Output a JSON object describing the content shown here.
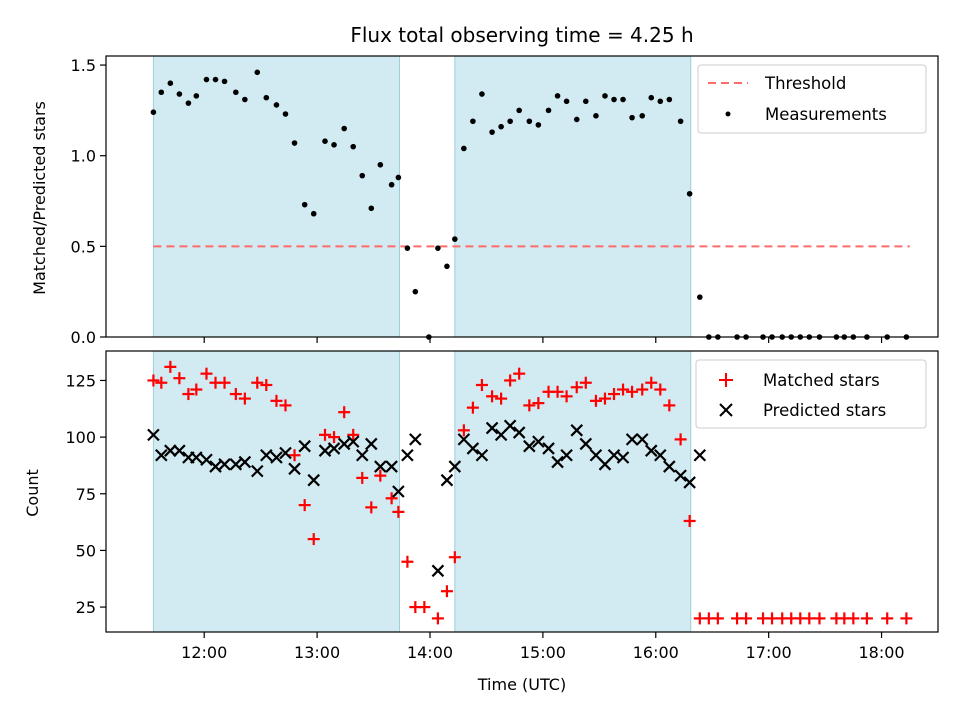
{
  "chart_data": {
    "type": "scatter",
    "title": "Flux total observing time = 4.25 h",
    "xlabel": "Time (UTC)",
    "x_ticks": [
      "12:00",
      "13:00",
      "14:00",
      "15:00",
      "16:00",
      "17:00",
      "18:00"
    ],
    "x_tick_hours": [
      12,
      13,
      14,
      15,
      16,
      17,
      18
    ],
    "xlim_hours": [
      11.13,
      18.5
    ],
    "shaded_intervals_hours": [
      [
        11.55,
        13.73
      ],
      [
        14.22,
        16.31
      ]
    ],
    "shade_color": "#add8e6",
    "panels": [
      {
        "ylabel": "Matched/Predicted stars",
        "ylim": [
          0,
          1.55
        ],
        "y_ticks": [
          "0.0",
          "0.5",
          "1.0",
          "1.5"
        ],
        "y_tick_values": [
          0,
          0.5,
          1.0,
          1.5
        ],
        "threshold": 0.5,
        "threshold_color": "#ff6b6b",
        "legend": [
          "Threshold",
          "Measurements"
        ],
        "legend_position": "upper right",
        "measurements": [
          [
            11.55,
            1.24
          ],
          [
            11.62,
            1.35
          ],
          [
            11.7,
            1.4
          ],
          [
            11.78,
            1.34
          ],
          [
            11.86,
            1.29
          ],
          [
            11.93,
            1.33
          ],
          [
            12.02,
            1.42
          ],
          [
            12.1,
            1.42
          ],
          [
            12.18,
            1.41
          ],
          [
            12.28,
            1.35
          ],
          [
            12.36,
            1.31
          ],
          [
            12.47,
            1.46
          ],
          [
            12.55,
            1.32
          ],
          [
            12.64,
            1.28
          ],
          [
            12.72,
            1.23
          ],
          [
            12.8,
            1.07
          ],
          [
            12.89,
            0.73
          ],
          [
            12.97,
            0.68
          ],
          [
            13.07,
            1.08
          ],
          [
            13.15,
            1.06
          ],
          [
            13.24,
            1.15
          ],
          [
            13.32,
            1.05
          ],
          [
            13.4,
            0.89
          ],
          [
            13.48,
            0.71
          ],
          [
            13.56,
            0.95
          ],
          [
            13.66,
            0.84
          ],
          [
            13.72,
            0.88
          ],
          [
            13.8,
            0.49
          ],
          [
            13.87,
            0.25
          ],
          [
            13.99,
            0.0
          ],
          [
            14.07,
            0.49
          ],
          [
            14.15,
            0.39
          ],
          [
            14.22,
            0.54
          ],
          [
            14.3,
            1.04
          ],
          [
            14.38,
            1.19
          ],
          [
            14.46,
            1.34
          ],
          [
            14.55,
            1.13
          ],
          [
            14.63,
            1.16
          ],
          [
            14.71,
            1.19
          ],
          [
            14.79,
            1.25
          ],
          [
            14.88,
            1.19
          ],
          [
            14.96,
            1.17
          ],
          [
            15.05,
            1.25
          ],
          [
            15.13,
            1.33
          ],
          [
            15.21,
            1.3
          ],
          [
            15.3,
            1.2
          ],
          [
            15.38,
            1.3
          ],
          [
            15.47,
            1.22
          ],
          [
            15.55,
            1.33
          ],
          [
            15.63,
            1.31
          ],
          [
            15.71,
            1.31
          ],
          [
            15.79,
            1.21
          ],
          [
            15.88,
            1.22
          ],
          [
            15.96,
            1.32
          ],
          [
            16.04,
            1.3
          ],
          [
            16.12,
            1.31
          ],
          [
            16.22,
            1.19
          ],
          [
            16.3,
            0.79
          ],
          [
            16.39,
            0.22
          ],
          [
            16.47,
            0.0
          ],
          [
            16.55,
            0.0
          ],
          [
            16.72,
            0.0
          ],
          [
            16.8,
            0.0
          ],
          [
            16.95,
            0.0
          ],
          [
            17.03,
            0.0
          ],
          [
            17.12,
            0.0
          ],
          [
            17.2,
            0.0
          ],
          [
            17.28,
            0.0
          ],
          [
            17.36,
            0.0
          ],
          [
            17.45,
            0.0
          ],
          [
            17.6,
            0.0
          ],
          [
            17.67,
            0.0
          ],
          [
            17.75,
            0.0
          ],
          [
            17.87,
            0.0
          ],
          [
            18.05,
            0.0
          ],
          [
            18.22,
            0.0
          ]
        ]
      },
      {
        "ylabel": "Count",
        "ylim": [
          14,
          138
        ],
        "y_ticks": [
          "25",
          "50",
          "75",
          "100",
          "125"
        ],
        "y_tick_values": [
          25,
          50,
          75,
          100,
          125
        ],
        "legend": [
          "Matched stars",
          "Predicted stars"
        ],
        "legend_position": "upper right",
        "series": [
          {
            "name": "Matched stars",
            "marker": "+",
            "color": "#ff0000",
            "points": [
              [
                11.55,
                125
              ],
              [
                11.62,
                124
              ],
              [
                11.7,
                131
              ],
              [
                11.78,
                126
              ],
              [
                11.86,
                119
              ],
              [
                11.93,
                121
              ],
              [
                12.02,
                128
              ],
              [
                12.1,
                124
              ],
              [
                12.18,
                124
              ],
              [
                12.28,
                119
              ],
              [
                12.36,
                117
              ],
              [
                12.47,
                124
              ],
              [
                12.55,
                123
              ],
              [
                12.64,
                116
              ],
              [
                12.72,
                114
              ],
              [
                12.8,
                92
              ],
              [
                12.89,
                70
              ],
              [
                12.97,
                55
              ],
              [
                13.07,
                101
              ],
              [
                13.15,
                100
              ],
              [
                13.24,
                111
              ],
              [
                13.32,
                101
              ],
              [
                13.4,
                82
              ],
              [
                13.48,
                69
              ],
              [
                13.56,
                83
              ],
              [
                13.66,
                73
              ],
              [
                13.72,
                67
              ],
              [
                13.8,
                45
              ],
              [
                13.87,
                25
              ],
              [
                13.95,
                25
              ],
              [
                14.07,
                20
              ],
              [
                14.15,
                32
              ],
              [
                14.22,
                47
              ],
              [
                14.3,
                103
              ],
              [
                14.38,
                113
              ],
              [
                14.46,
                123
              ],
              [
                14.55,
                118
              ],
              [
                14.63,
                117
              ],
              [
                14.71,
                125
              ],
              [
                14.79,
                128
              ],
              [
                14.88,
                114
              ],
              [
                14.96,
                115
              ],
              [
                15.05,
                120
              ],
              [
                15.13,
                120
              ],
              [
                15.21,
                118
              ],
              [
                15.3,
                122
              ],
              [
                15.38,
                124
              ],
              [
                15.47,
                116
              ],
              [
                15.55,
                117
              ],
              [
                15.63,
                119
              ],
              [
                15.71,
                121
              ],
              [
                15.79,
                120
              ],
              [
                15.88,
                121
              ],
              [
                15.96,
                124
              ],
              [
                16.04,
                121
              ],
              [
                16.12,
                114
              ],
              [
                16.22,
                99
              ],
              [
                16.3,
                63
              ],
              [
                16.39,
                20
              ],
              [
                16.47,
                20
              ],
              [
                16.55,
                20
              ],
              [
                16.72,
                20
              ],
              [
                16.8,
                20
              ],
              [
                16.95,
                20
              ],
              [
                17.03,
                20
              ],
              [
                17.12,
                20
              ],
              [
                17.2,
                20
              ],
              [
                17.28,
                20
              ],
              [
                17.36,
                20
              ],
              [
                17.45,
                20
              ],
              [
                17.6,
                20
              ],
              [
                17.67,
                20
              ],
              [
                17.75,
                20
              ],
              [
                17.87,
                20
              ],
              [
                18.05,
                20
              ],
              [
                18.22,
                20
              ]
            ]
          },
          {
            "name": "Predicted stars",
            "marker": "x",
            "color": "#000000",
            "points": [
              [
                11.55,
                101
              ],
              [
                11.62,
                92
              ],
              [
                11.7,
                94
              ],
              [
                11.78,
                94
              ],
              [
                11.86,
                91
              ],
              [
                11.93,
                91
              ],
              [
                12.02,
                90
              ],
              [
                12.1,
                87
              ],
              [
                12.18,
                88
              ],
              [
                12.28,
                88
              ],
              [
                12.36,
                89
              ],
              [
                12.47,
                85
              ],
              [
                12.55,
                92
              ],
              [
                12.64,
                91
              ],
              [
                12.72,
                93
              ],
              [
                12.8,
                86
              ],
              [
                12.89,
                96
              ],
              [
                12.97,
                81
              ],
              [
                13.07,
                94
              ],
              [
                13.15,
                95
              ],
              [
                13.24,
                97
              ],
              [
                13.32,
                98
              ],
              [
                13.4,
                92
              ],
              [
                13.48,
                97
              ],
              [
                13.56,
                87
              ],
              [
                13.66,
                87
              ],
              [
                13.72,
                76
              ],
              [
                13.8,
                92
              ],
              [
                13.87,
                99
              ],
              [
                14.07,
                41
              ],
              [
                14.15,
                81
              ],
              [
                14.22,
                87
              ],
              [
                14.3,
                99
              ],
              [
                14.38,
                95
              ],
              [
                14.46,
                92
              ],
              [
                14.55,
                104
              ],
              [
                14.63,
                101
              ],
              [
                14.71,
                105
              ],
              [
                14.79,
                102
              ],
              [
                14.88,
                96
              ],
              [
                14.96,
                98
              ],
              [
                15.05,
                95
              ],
              [
                15.13,
                89
              ],
              [
                15.21,
                92
              ],
              [
                15.3,
                103
              ],
              [
                15.38,
                97
              ],
              [
                15.47,
                92
              ],
              [
                15.55,
                88
              ],
              [
                15.63,
                92
              ],
              [
                15.71,
                91
              ],
              [
                15.79,
                99
              ],
              [
                15.88,
                99
              ],
              [
                15.96,
                94
              ],
              [
                16.04,
                92
              ],
              [
                16.12,
                87
              ],
              [
                16.22,
                83
              ],
              [
                16.3,
                80
              ],
              [
                16.39,
                92
              ]
            ]
          }
        ]
      }
    ]
  }
}
